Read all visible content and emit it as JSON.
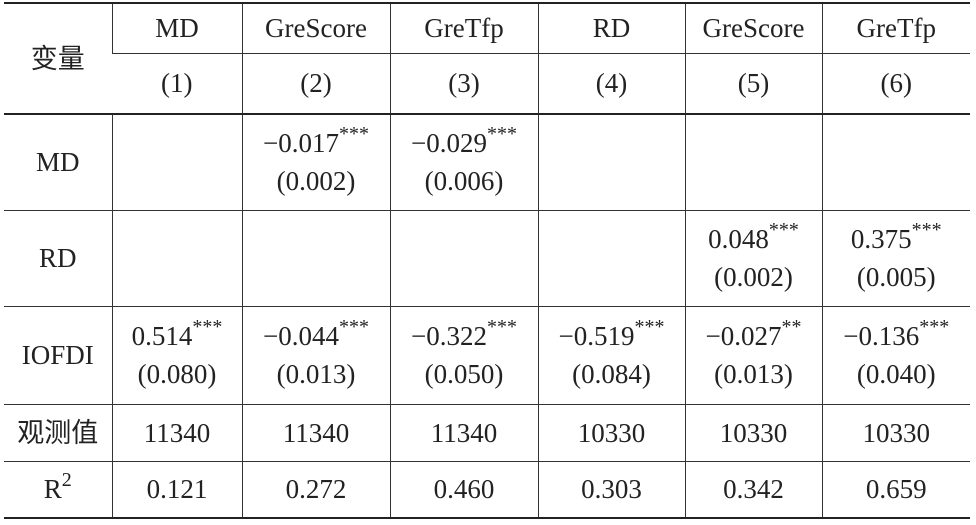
{
  "table": {
    "corner": "变量",
    "columns": [
      {
        "name": "MD",
        "num": "(1)"
      },
      {
        "name": "GreScore",
        "num": "(2)"
      },
      {
        "name": "GreTfp",
        "num": "(3)"
      },
      {
        "name": "RD",
        "num": "(4)"
      },
      {
        "name": "GreScore",
        "num": "(5)"
      },
      {
        "name": "GreTfp",
        "num": "(6)"
      }
    ],
    "rows": [
      {
        "label": "MD",
        "cells": [
          null,
          {
            "coef": "−0.017",
            "stars": "***",
            "se": "(0.002)"
          },
          {
            "coef": "−0.029",
            "stars": "***",
            "se": "(0.006)"
          },
          null,
          null,
          null
        ]
      },
      {
        "label": "RD",
        "cells": [
          null,
          null,
          null,
          null,
          {
            "coef": "0.048",
            "stars": "***",
            "se": "(0.002)"
          },
          {
            "coef": "0.375",
            "stars": "***",
            "se": "(0.005)"
          }
        ]
      },
      {
        "label": "IOFDI",
        "cells": [
          {
            "coef": "0.514",
            "stars": "***",
            "se": "(0.080)"
          },
          {
            "coef": "−0.044",
            "stars": "***",
            "se": "(0.013)"
          },
          {
            "coef": "−0.322",
            "stars": "***",
            "se": "(0.050)"
          },
          {
            "coef": "−0.519",
            "stars": "***",
            "se": "(0.084)"
          },
          {
            "coef": "−0.027",
            "stars": "**",
            "se": "(0.013)"
          },
          {
            "coef": "−0.136",
            "stars": "***",
            "se": "(0.040)"
          }
        ]
      }
    ],
    "observations": {
      "label": "观测值",
      "values": [
        "11340",
        "11340",
        "11340",
        "10330",
        "10330",
        "10330"
      ]
    },
    "r2": {
      "label": {
        "text": "R",
        "sup": "2"
      },
      "values": [
        "0.121",
        "0.272",
        "0.460",
        "0.303",
        "0.342",
        "0.659"
      ]
    }
  }
}
